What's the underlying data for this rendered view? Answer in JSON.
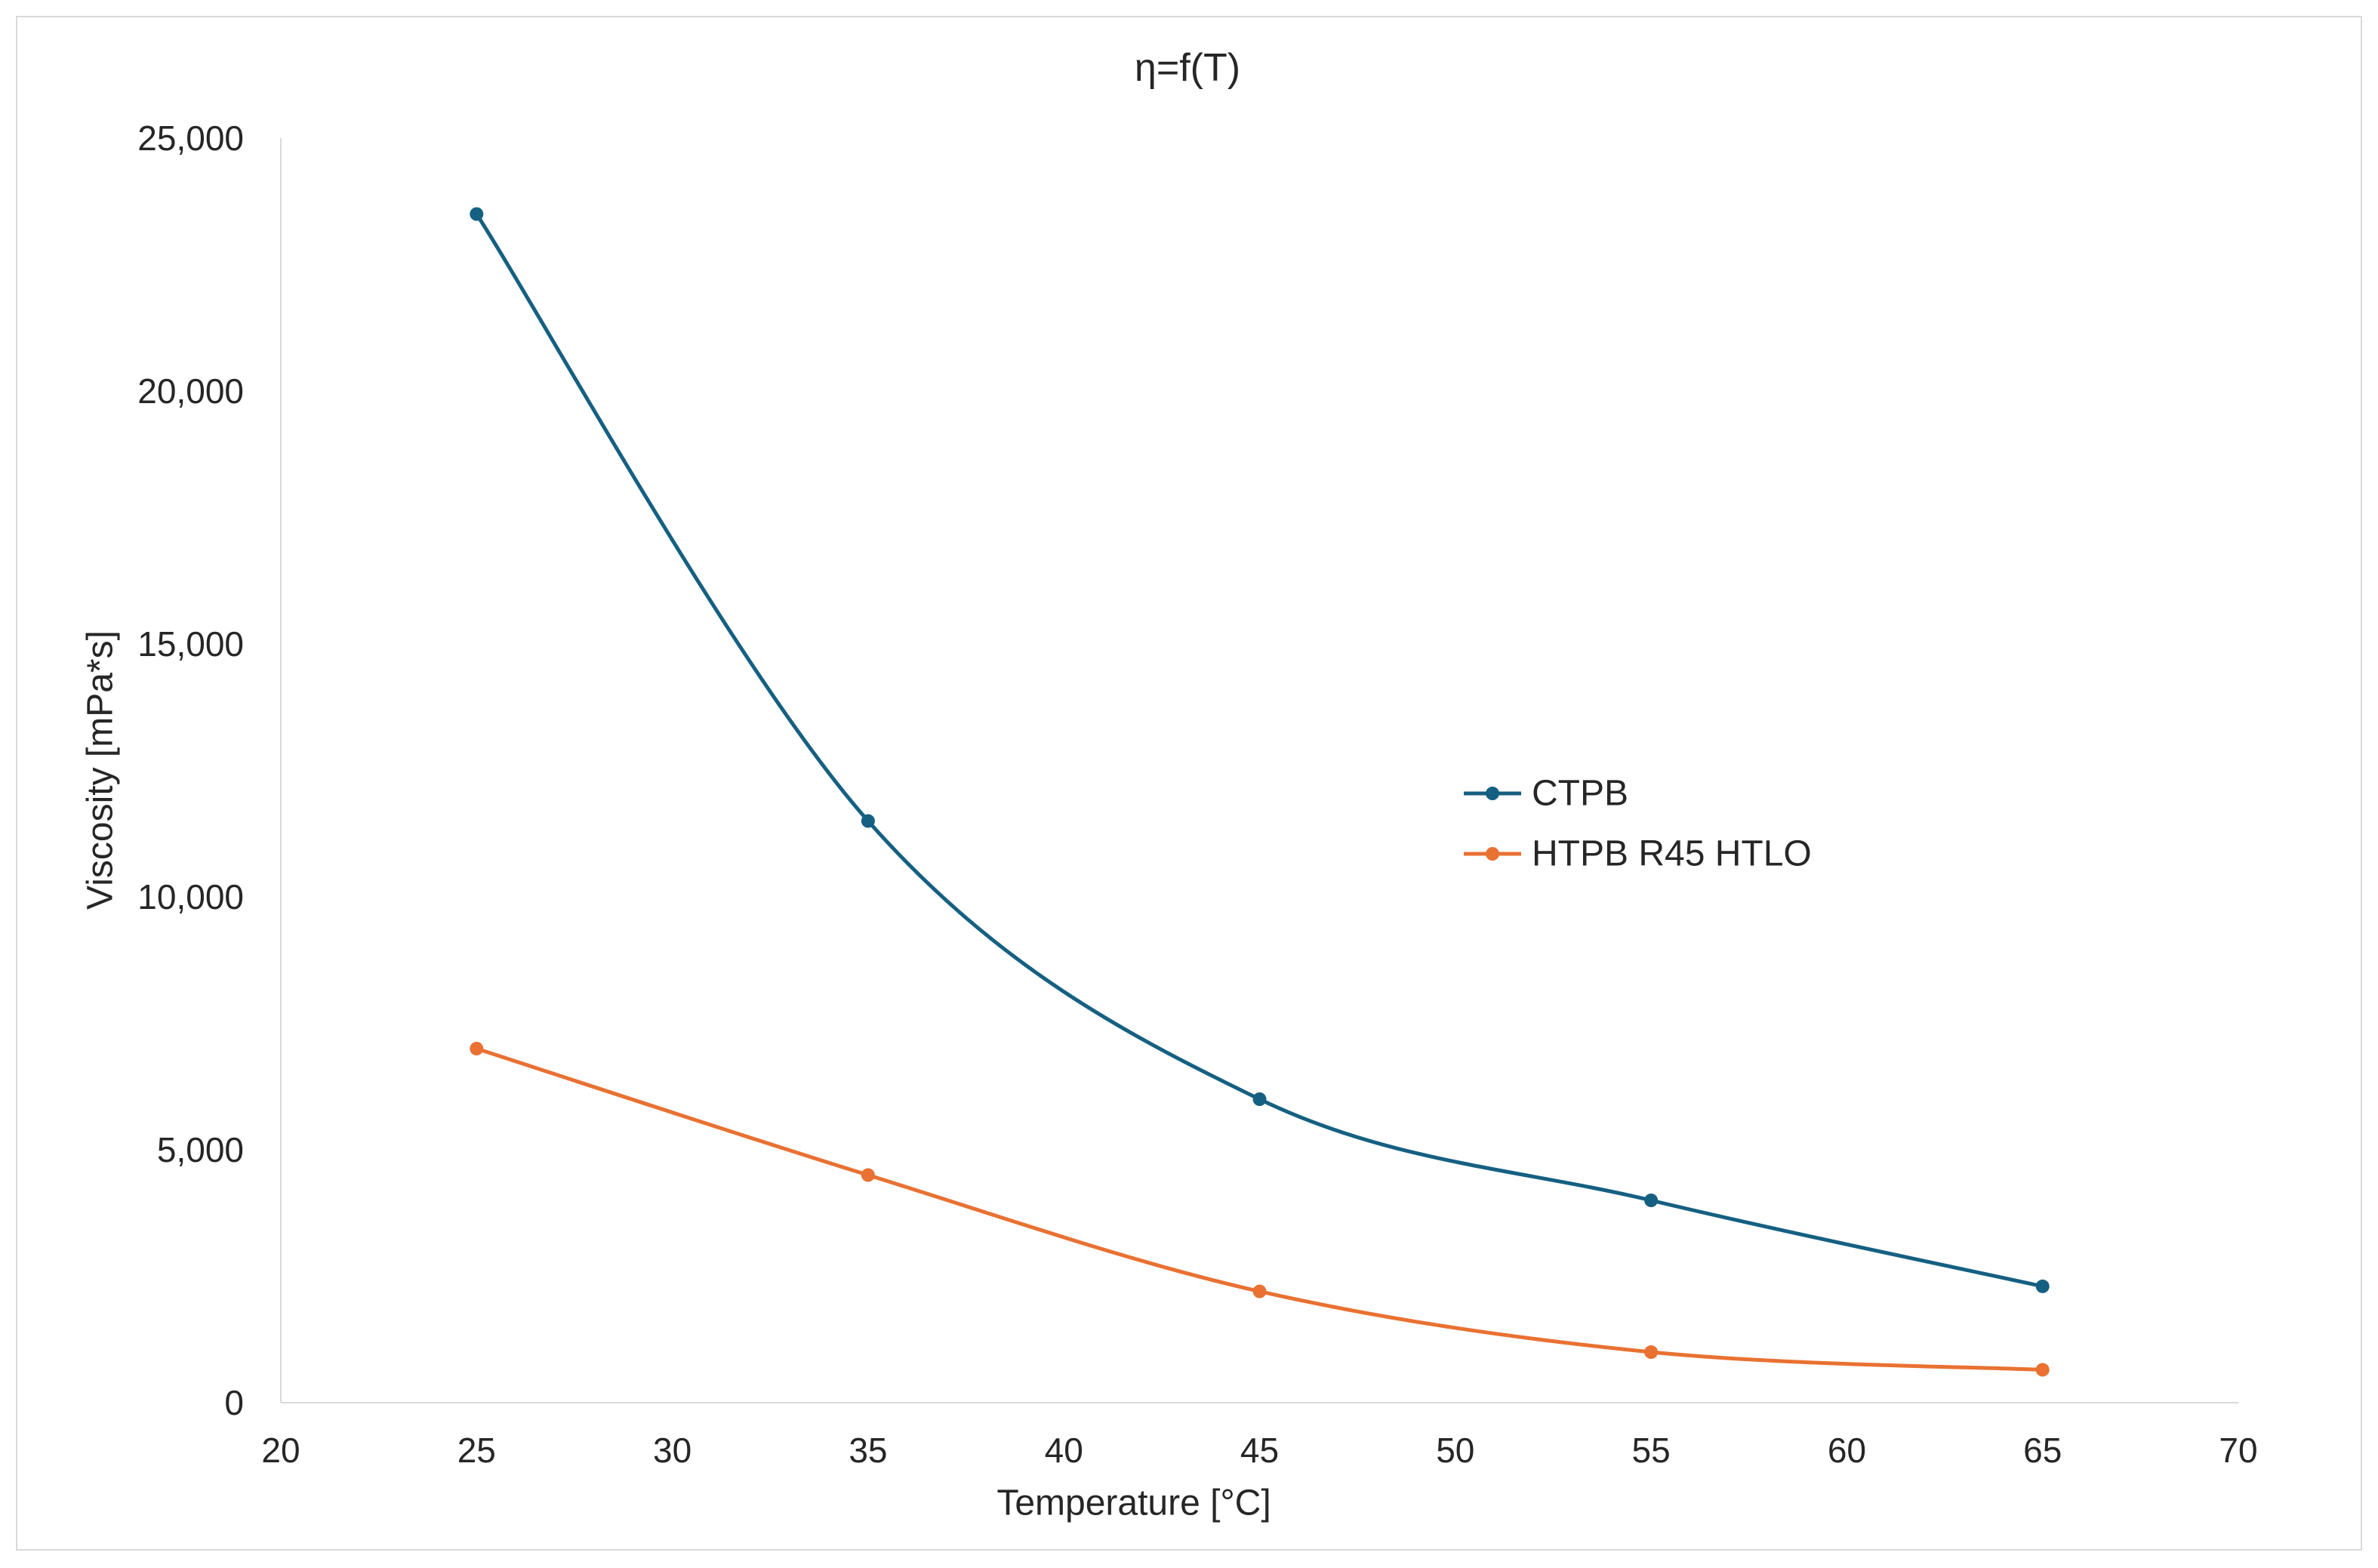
{
  "chart_data": {
    "type": "line",
    "title": "η=f(T)",
    "xlabel": "Temperature [°C]",
    "ylabel": "Viscosity [mPa*s]",
    "x": [
      25,
      35,
      45,
      55,
      65
    ],
    "series": [
      {
        "name": "CTPB",
        "color": "#156082",
        "values": [
          23500,
          11500,
          6000,
          4000,
          2300
        ]
      },
      {
        "name": "HTPB R45 HTLO",
        "color": "#E97132",
        "values": [
          7000,
          4500,
          2200,
          1000,
          650
        ]
      }
    ],
    "xlim": [
      20,
      70
    ],
    "ylim": [
      0,
      25000
    ],
    "x_ticks": [
      20,
      25,
      30,
      35,
      40,
      45,
      50,
      55,
      60,
      65,
      70
    ],
    "x_tick_labels": [
      "20",
      "25",
      "30",
      "35",
      "40",
      "45",
      "50",
      "55",
      "60",
      "65",
      "70"
    ],
    "y_ticks": [
      0,
      5000,
      10000,
      15000,
      20000,
      25000
    ],
    "y_tick_labels": [
      "0",
      "5,000",
      "10,000",
      "15,000",
      "20,000",
      "25,000"
    ],
    "smooth": true,
    "markers": true,
    "grid": false,
    "legend_position": "right"
  }
}
